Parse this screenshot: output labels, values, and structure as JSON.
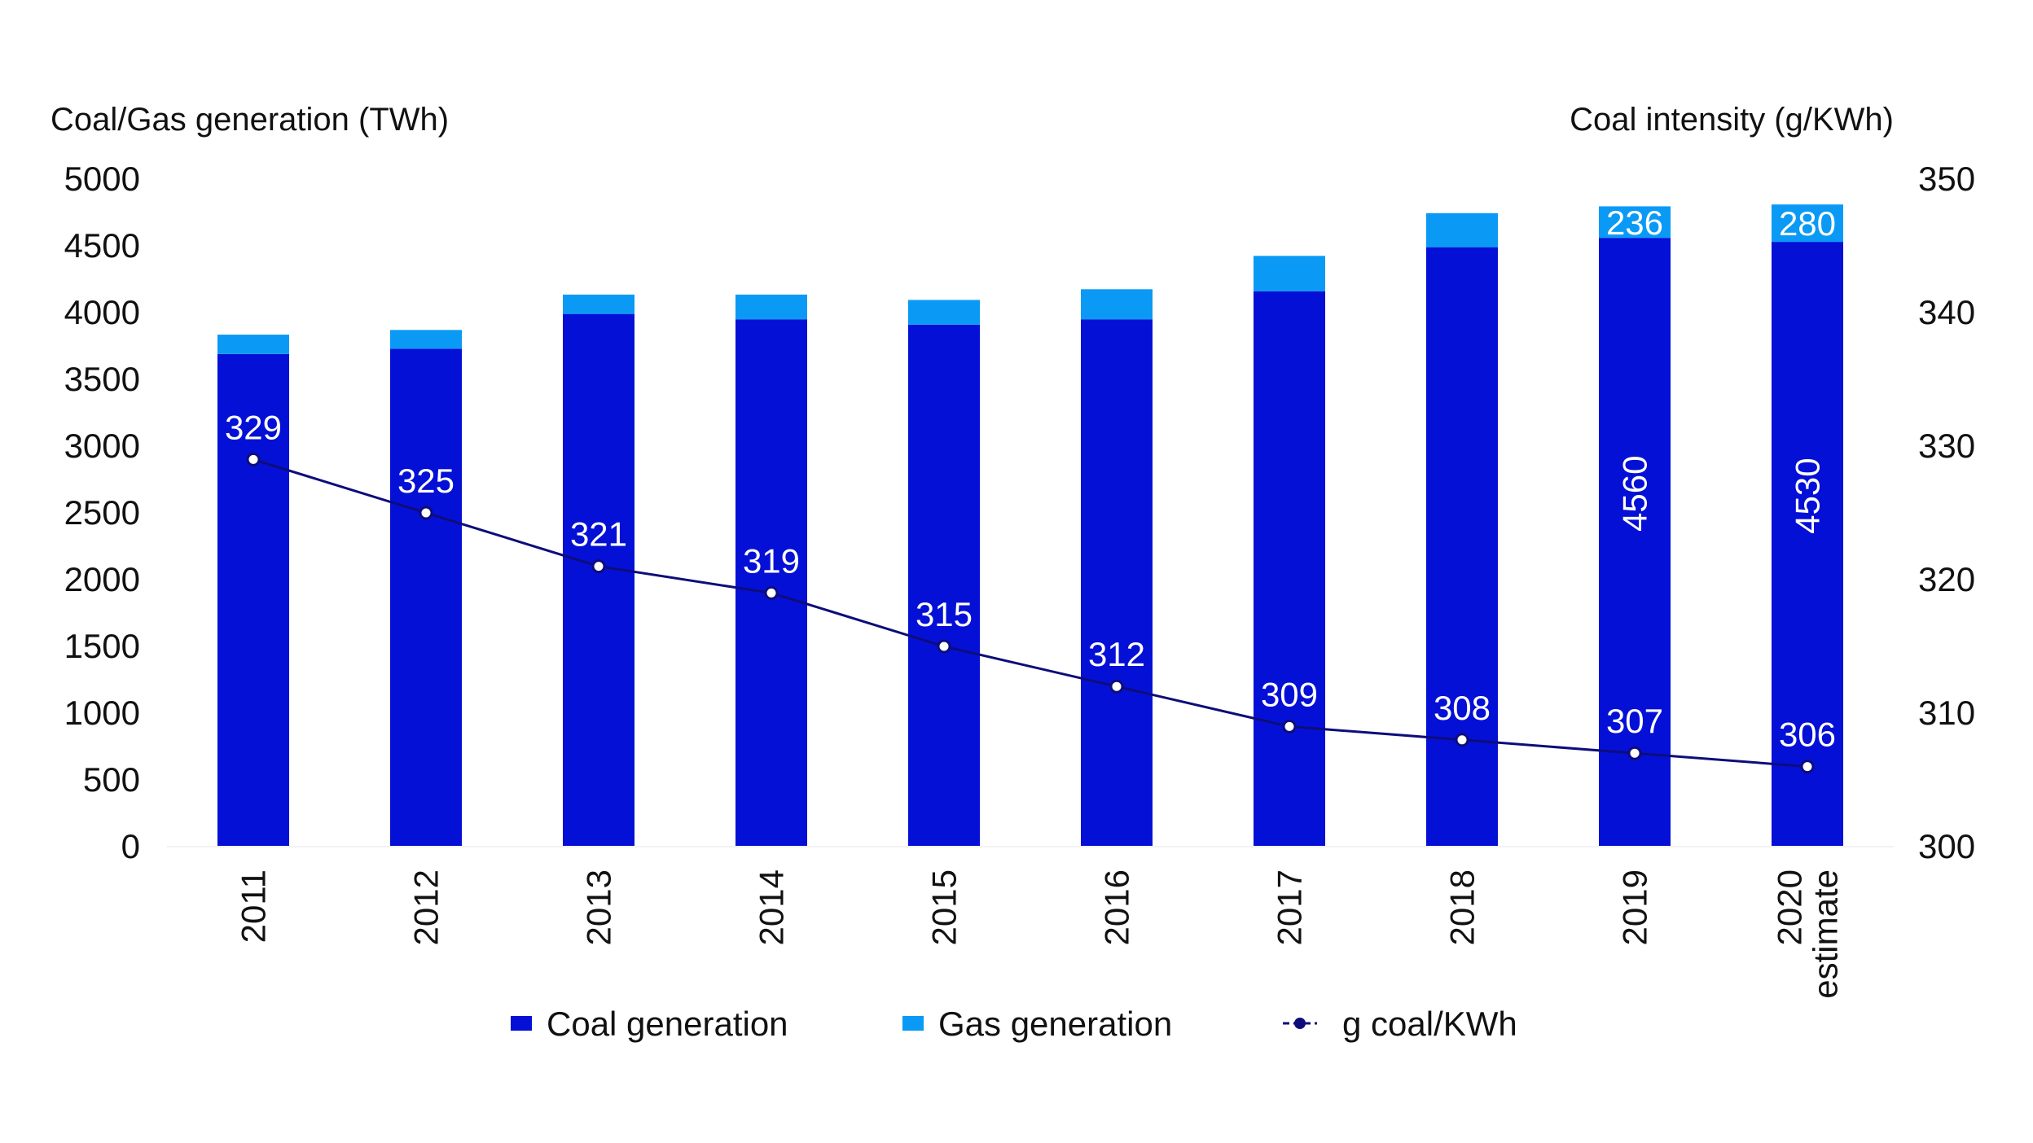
{
  "chart_data": {
    "type": "bar",
    "stacked": true,
    "categories": [
      "2011",
      "2012",
      "2013",
      "2014",
      "2015",
      "2016",
      "2017",
      "2018",
      "2019",
      "2020 estimate"
    ],
    "category_lines": [
      [
        "2011"
      ],
      [
        "2012"
      ],
      [
        "2013"
      ],
      [
        "2014"
      ],
      [
        "2015"
      ],
      [
        "2016"
      ],
      [
        "2017"
      ],
      [
        "2018"
      ],
      [
        "2019"
      ],
      [
        "2020",
        "estimate"
      ]
    ],
    "y_label": "Coal/Gas generation (TWh)",
    "y2_label": "Coal intensity (g/KWh)",
    "ylim": [
      0,
      5000
    ],
    "y_ticks": [
      0,
      500,
      1000,
      1500,
      2000,
      2500,
      3000,
      3500,
      4000,
      4500,
      5000
    ],
    "y2lim": [
      300,
      350
    ],
    "y2_ticks": [
      300,
      310,
      320,
      330,
      340,
      350
    ],
    "series": [
      {
        "name": "Coal generation",
        "kind": "bar",
        "axis": "left",
        "color": "#0510d6",
        "values": [
          3690,
          3730,
          3990,
          3950,
          3910,
          3950,
          4160,
          4490,
          4560,
          4530
        ],
        "labels": [
          "",
          "",
          "",
          "",
          "",
          "",
          "",
          "",
          "4560",
          "4530"
        ]
      },
      {
        "name": "Gas generation",
        "kind": "bar",
        "axis": "left",
        "color": "#0a9af5",
        "values": [
          145,
          140,
          145,
          185,
          185,
          225,
          265,
          255,
          236,
          280
        ],
        "labels": [
          "",
          "",
          "",
          "",
          "",
          "",
          "",
          "",
          "236",
          "280"
        ]
      },
      {
        "name": "g coal/KWh",
        "kind": "line",
        "axis": "right",
        "color": "#0d0d7a",
        "values": [
          329,
          325,
          321,
          319,
          315,
          312,
          309,
          308,
          307,
          306
        ],
        "labels": [
          "329",
          "325",
          "321",
          "319",
          "315",
          "312",
          "309",
          "308",
          "307",
          "306"
        ]
      }
    ],
    "legend_position": "bottom",
    "grid": false
  }
}
